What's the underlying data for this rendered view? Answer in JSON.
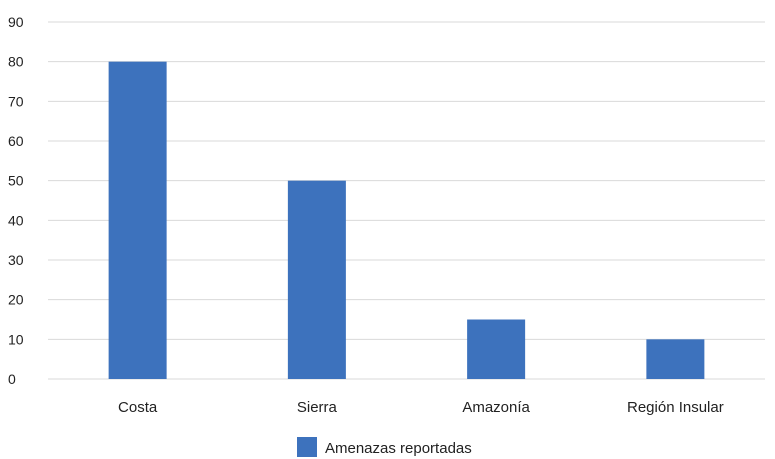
{
  "chart_data": {
    "type": "bar",
    "categories": [
      "Costa",
      "Sierra",
      "Amazonía",
      "Región Insular"
    ],
    "series": [
      {
        "name": "Amenazas reportadas",
        "values": [
          80,
          50,
          15,
          10
        ],
        "color": "#3d72bd"
      }
    ],
    "ylim": [
      0,
      90
    ],
    "yticks": [
      0,
      10,
      20,
      30,
      40,
      50,
      60,
      70,
      80,
      90
    ],
    "grid": true,
    "grid_color": "#d9d9d9",
    "legend_position": "bottom"
  }
}
